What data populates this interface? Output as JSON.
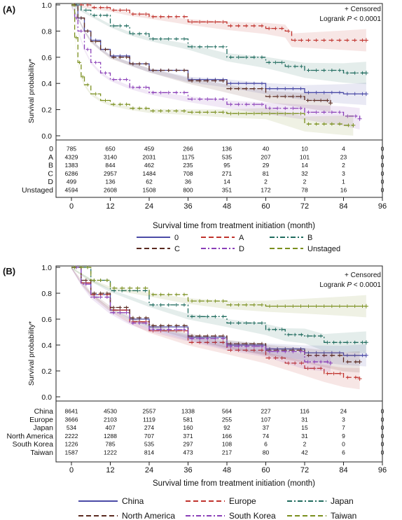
{
  "colors": {
    "s0": "#4a4aa6",
    "sA": "#c0322c",
    "sB": "#1f6b5e",
    "sC": "#5a2a20",
    "sD": "#8a3fb8",
    "sU": "#7a8f1e",
    "china": "#4a4aa6",
    "europe": "#c0322c",
    "japan": "#1f6b5e",
    "northamerica": "#5a2a20",
    "southkorea": "#8a3fb8",
    "taiwan": "#7a8f1e"
  },
  "chart_data": [
    {
      "type": "line",
      "panel_label": "(A)",
      "ylabel": "Survival probability*",
      "xlabel": "Survival time from treatment initiation (month)",
      "xlim": [
        0,
        96
      ],
      "ylim": [
        0,
        1
      ],
      "xticks": [
        "0",
        "12",
        "24",
        "36",
        "48",
        "60",
        "72",
        "84",
        "96"
      ],
      "yticks": [
        "0.0",
        "0.2",
        "0.4",
        "0.6",
        "0.8",
        "1.0"
      ],
      "annotation_censored": "+ Censored",
      "annotation_logrank": "Logrank",
      "annotation_p": "P < 0.0001",
      "series": [
        {
          "name": "0",
          "color_key": "s0",
          "dash": "solid",
          "x": [
            0,
            2,
            4,
            6,
            9,
            12,
            18,
            24,
            36,
            48,
            60,
            72,
            84,
            91
          ],
          "y": [
            1.0,
            0.9,
            0.8,
            0.73,
            0.66,
            0.61,
            0.55,
            0.5,
            0.43,
            0.4,
            0.36,
            0.33,
            0.32,
            0.32
          ]
        },
        {
          "name": "A",
          "color_key": "sA",
          "dash": "longdash",
          "x": [
            0,
            6,
            12,
            18,
            24,
            36,
            48,
            60,
            66,
            68,
            72,
            84,
            91
          ],
          "y": [
            1.0,
            0.98,
            0.96,
            0.93,
            0.91,
            0.87,
            0.84,
            0.82,
            0.8,
            0.73,
            0.73,
            0.73,
            0.73
          ]
        },
        {
          "name": "B",
          "color_key": "sB",
          "dash": "dashdot",
          "x": [
            0,
            3,
            6,
            12,
            18,
            24,
            36,
            48,
            60,
            66,
            72,
            84,
            91
          ],
          "y": [
            1.0,
            0.96,
            0.92,
            0.84,
            0.78,
            0.74,
            0.68,
            0.6,
            0.56,
            0.53,
            0.5,
            0.48,
            0.48
          ]
        },
        {
          "name": "C",
          "color_key": "sC",
          "dash": "longdash",
          "x": [
            0,
            2,
            4,
            6,
            9,
            12,
            18,
            24,
            36,
            48,
            60,
            72,
            80
          ],
          "y": [
            1.0,
            0.9,
            0.8,
            0.72,
            0.66,
            0.6,
            0.55,
            0.5,
            0.42,
            0.36,
            0.3,
            0.27,
            0.25
          ]
        },
        {
          "name": "D",
          "color_key": "sD",
          "dash": "dashdot",
          "x": [
            0,
            1,
            2,
            4,
            6,
            9,
            12,
            18,
            24,
            36,
            48,
            60,
            72,
            84,
            89
          ],
          "y": [
            1.0,
            0.9,
            0.8,
            0.66,
            0.56,
            0.48,
            0.43,
            0.37,
            0.33,
            0.28,
            0.24,
            0.21,
            0.18,
            0.15,
            0.13
          ]
        },
        {
          "name": "Unstaged",
          "color_key": "sU",
          "dash": "longdash",
          "x": [
            0,
            1,
            2,
            3,
            4,
            6,
            9,
            12,
            18,
            24,
            36,
            48,
            60,
            72,
            84,
            87
          ],
          "y": [
            1.0,
            0.75,
            0.56,
            0.45,
            0.39,
            0.32,
            0.27,
            0.24,
            0.21,
            0.19,
            0.18,
            0.17,
            0.17,
            0.09,
            0.08,
            0.08
          ]
        }
      ],
      "risk_table": {
        "rows": [
          {
            "label": "0",
            "values": [
              "785",
              "650",
              "459",
              "266",
              "136",
              "40",
              "10",
              "4",
              "0"
            ]
          },
          {
            "label": "A",
            "values": [
              "4329",
              "3140",
              "2031",
              "1175",
              "535",
              "207",
              "101",
              "23",
              "0"
            ]
          },
          {
            "label": "B",
            "values": [
              "1383",
              "844",
              "462",
              "235",
              "95",
              "29",
              "14",
              "2",
              "0"
            ]
          },
          {
            "label": "C",
            "values": [
              "6286",
              "2957",
              "1484",
              "708",
              "271",
              "81",
              "32",
              "3",
              "0"
            ]
          },
          {
            "label": "D",
            "values": [
              "499",
              "136",
              "62",
              "36",
              "14",
              "2",
              "2",
              "1",
              "0"
            ]
          },
          {
            "label": "Unstaged",
            "values": [
              "4594",
              "2608",
              "1508",
              "800",
              "351",
              "172",
              "78",
              "16",
              "0"
            ]
          }
        ]
      },
      "legend_position": "bottom"
    },
    {
      "type": "line",
      "panel_label": "(B)",
      "ylabel": "Survival probability*",
      "xlabel": "Survival time from treatment initiation (month)",
      "xlim": [
        0,
        96
      ],
      "ylim": [
        0,
        1
      ],
      "xticks": [
        "0",
        "12",
        "24",
        "36",
        "48",
        "60",
        "72",
        "84",
        "96"
      ],
      "yticks": [
        "0.0",
        "0.2",
        "0.4",
        "0.6",
        "0.8",
        "1.0"
      ],
      "annotation_censored": "+ Censored",
      "annotation_logrank": "Logrank",
      "annotation_p": "P < 0.0001",
      "series": [
        {
          "name": "China",
          "color_key": "china",
          "dash": "solid",
          "x": [
            0,
            3,
            6,
            12,
            18,
            24,
            36,
            48,
            60,
            72,
            84,
            91
          ],
          "y": [
            1.0,
            0.88,
            0.79,
            0.67,
            0.6,
            0.54,
            0.46,
            0.4,
            0.37,
            0.34,
            0.32,
            0.32
          ]
        },
        {
          "name": "Europe",
          "color_key": "europe",
          "dash": "longdash",
          "x": [
            0,
            3,
            6,
            12,
            18,
            24,
            36,
            48,
            60,
            66,
            72,
            78,
            84,
            89
          ],
          "y": [
            1.0,
            0.88,
            0.79,
            0.67,
            0.58,
            0.51,
            0.42,
            0.36,
            0.3,
            0.26,
            0.22,
            0.18,
            0.15,
            0.14
          ]
        },
        {
          "name": "Japan",
          "color_key": "japan",
          "dash": "dashdot",
          "x": [
            0,
            6,
            12,
            24,
            36,
            48,
            60,
            66,
            72,
            78,
            84,
            91
          ],
          "y": [
            1.0,
            0.9,
            0.82,
            0.71,
            0.62,
            0.57,
            0.52,
            0.48,
            0.47,
            0.42,
            0.42,
            0.42
          ]
        },
        {
          "name": "North America",
          "color_key": "northamerica",
          "dash": "longdash",
          "x": [
            0,
            3,
            6,
            12,
            18,
            24,
            36,
            48,
            60,
            72,
            84,
            89
          ],
          "y": [
            1.0,
            0.9,
            0.8,
            0.69,
            0.61,
            0.55,
            0.47,
            0.41,
            0.36,
            0.32,
            0.27,
            0.27
          ]
        },
        {
          "name": "South Korea",
          "color_key": "southkorea",
          "dash": "dashdot",
          "x": [
            0,
            3,
            6,
            12,
            18,
            24,
            36,
            48,
            60,
            72,
            80
          ],
          "y": [
            1.0,
            0.87,
            0.77,
            0.65,
            0.57,
            0.52,
            0.45,
            0.39,
            0.35,
            0.27,
            0.26
          ]
        },
        {
          "name": "Taiwan",
          "color_key": "taiwan",
          "dash": "longdash",
          "x": [
            0,
            6,
            12,
            24,
            36,
            48,
            60,
            72,
            84,
            91
          ],
          "y": [
            1.0,
            0.9,
            0.84,
            0.79,
            0.74,
            0.71,
            0.7,
            0.7,
            0.7,
            0.7
          ]
        }
      ],
      "risk_table": {
        "rows": [
          {
            "label": "China",
            "values": [
              "8641",
              "4530",
              "2557",
              "1338",
              "564",
              "227",
              "116",
              "24",
              "0"
            ]
          },
          {
            "label": "Europe",
            "values": [
              "3666",
              "2103",
              "1119",
              "581",
              "255",
              "107",
              "31",
              "3",
              "0"
            ]
          },
          {
            "label": "Japan",
            "values": [
              "534",
              "407",
              "274",
              "160",
              "92",
              "37",
              "15",
              "7",
              "0"
            ]
          },
          {
            "label": "North America",
            "values": [
              "2222",
              "1288",
              "707",
              "371",
              "166",
              "74",
              "31",
              "9",
              "0"
            ]
          },
          {
            "label": "South Korea",
            "values": [
              "1226",
              "785",
              "535",
              "297",
              "108",
              "6",
              "2",
              "0",
              "0"
            ]
          },
          {
            "label": "Taiwan",
            "values": [
              "1587",
              "1222",
              "814",
              "473",
              "217",
              "80",
              "42",
              "6",
              "0"
            ]
          }
        ]
      },
      "legend_position": "bottom"
    }
  ]
}
